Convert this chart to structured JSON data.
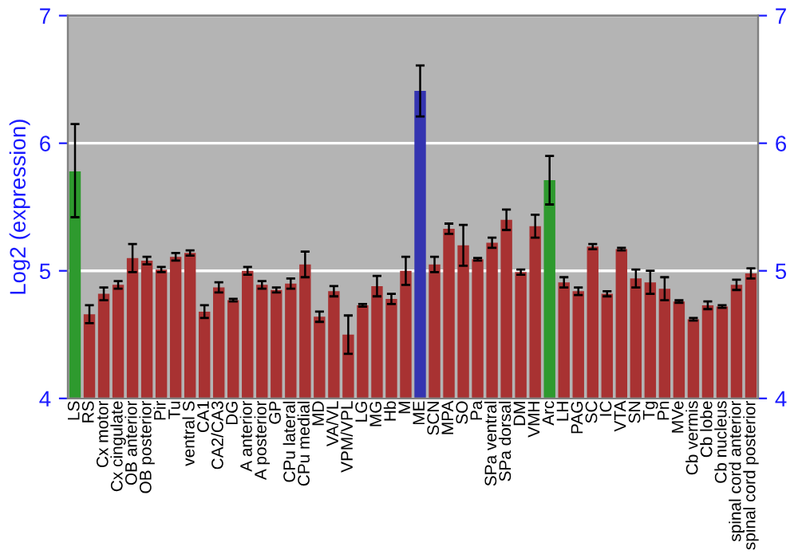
{
  "chart_data": {
    "type": "bar",
    "ylabel": "Log2 (expression)",
    "categories": [
      "LS",
      "RS",
      "Cx motor",
      "Cx cingulate",
      "OB anterior",
      "OB posterior",
      "Pir",
      "Tu",
      "ventral S",
      "CA1",
      "CA2/CA3",
      "DG",
      "A anterior",
      "A posterior",
      "GP",
      "CPu lateral",
      "CPu medial",
      "MD",
      "VA/VL",
      "VPM/VPL",
      "LG",
      "MG",
      "Hb",
      "M",
      "ME",
      "SCN",
      "MPA",
      "SO",
      "Pa",
      "SPa ventral",
      "SPa dorsal",
      "DM",
      "VMH",
      "Arc",
      "LH",
      "PAG",
      "SC",
      "IC",
      "VTA",
      "SN",
      "Tg",
      "Pn",
      "MVe",
      "Cb vermis",
      "Cb lobe",
      "Cb nucleus",
      "spinal cord anterior",
      "spinal cord posterior"
    ],
    "values": [
      5.78,
      4.66,
      4.82,
      4.89,
      5.1,
      5.08,
      5.01,
      5.11,
      5.14,
      4.68,
      4.87,
      4.77,
      5.0,
      4.89,
      4.85,
      4.9,
      5.05,
      4.64,
      4.84,
      4.5,
      4.73,
      4.88,
      4.78,
      5.0,
      6.41,
      5.05,
      5.33,
      5.2,
      5.09,
      5.22,
      5.4,
      4.99,
      5.35,
      5.71,
      4.91,
      4.84,
      5.19,
      4.82,
      5.17,
      4.94,
      4.91,
      4.86,
      4.76,
      4.62,
      4.73,
      4.72,
      4.89,
      4.98
    ],
    "errors": [
      [
        5.42,
        6.15
      ],
      0.07,
      0.05,
      0.03,
      0.11,
      0.03,
      0.02,
      0.03,
      0.02,
      0.05,
      0.04,
      0.01,
      0.03,
      0.03,
      0.02,
      0.04,
      0.1,
      0.04,
      0.04,
      0.15,
      0.01,
      0.08,
      0.04,
      0.11,
      0.2,
      0.06,
      0.04,
      0.16,
      0.01,
      0.04,
      0.08,
      0.02,
      0.09,
      0.19,
      0.04,
      0.03,
      0.02,
      0.02,
      0.01,
      0.07,
      0.09,
      0.09,
      0.01,
      0.01,
      0.03,
      0.01,
      0.04,
      0.04
    ],
    "colors": [
      "#2e9a2e",
      "#a83232",
      "#a83232",
      "#a83232",
      "#a83232",
      "#a83232",
      "#a83232",
      "#a83232",
      "#a83232",
      "#a83232",
      "#a83232",
      "#a83232",
      "#a83232",
      "#a83232",
      "#a83232",
      "#a83232",
      "#a83232",
      "#a83232",
      "#a83232",
      "#a83232",
      "#a83232",
      "#a83232",
      "#a83232",
      "#a83232",
      "#3434b0",
      "#a83232",
      "#a83232",
      "#a83232",
      "#a83232",
      "#a83232",
      "#a83232",
      "#a83232",
      "#a83232",
      "#2e9a2e",
      "#a83232",
      "#a83232",
      "#a83232",
      "#a83232",
      "#a83232",
      "#a83232",
      "#a83232",
      "#a83232",
      "#a83232",
      "#a83232",
      "#a83232",
      "#a83232",
      "#a83232",
      "#a83232"
    ],
    "ylim": [
      4,
      7
    ],
    "yticks": [
      4,
      5,
      6,
      7
    ],
    "y2lim": [
      4,
      7
    ],
    "y2ticks": [
      4,
      5,
      6,
      7
    ],
    "grid": "y"
  }
}
